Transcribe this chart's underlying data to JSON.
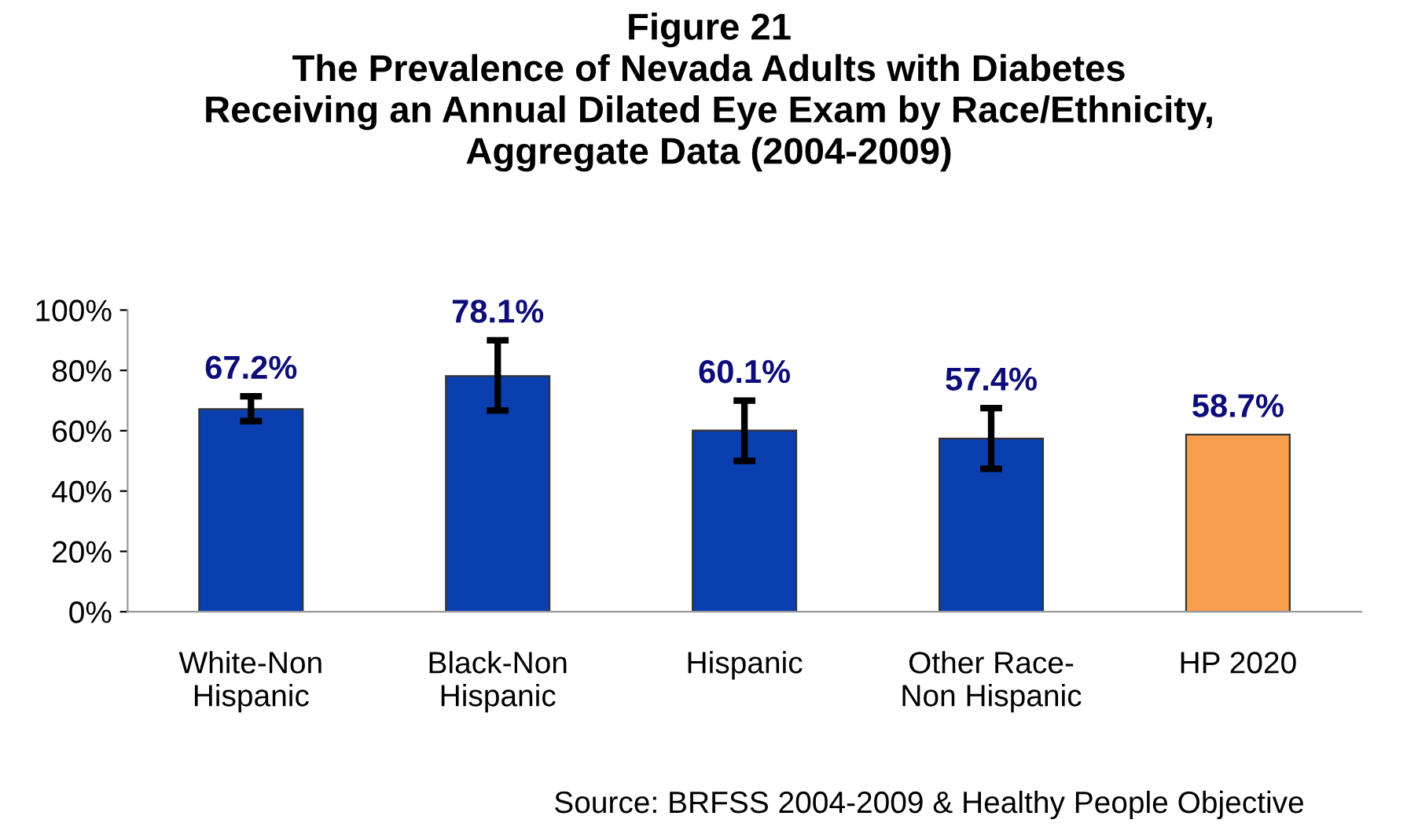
{
  "chart_data": {
    "type": "bar",
    "title": "Figure 21\nThe Prevalence of Nevada Adults with Diabetes\nReceiving an Annual Dilated Eye Exam by Race/Ethnicity,\nAggregate Data (2004-2009)",
    "categories": [
      "White-Non\nHispanic",
      "Black-Non\nHispanic",
      "Hispanic",
      "Other Race-\nNon Hispanic",
      "HP 2020"
    ],
    "values": [
      67.2,
      78.1,
      60.1,
      57.4,
      58.7
    ],
    "colors": [
      "#0a3fb0",
      "#0a3fb0",
      "#0a3fb0",
      "#0a3fb0",
      "#f79e4f"
    ],
    "errors": [
      [
        63.2,
        71.4
      ],
      [
        66.7,
        90.0
      ],
      [
        50.0,
        70.0
      ],
      [
        47.4,
        67.5
      ],
      null
    ],
    "value_labels": [
      "67.2%",
      "78.1%",
      "60.1%",
      "57.4%",
      "58.7%"
    ],
    "ylim": [
      0,
      100
    ],
    "yticks": [
      {
        "value": 0,
        "label": "0%"
      },
      {
        "value": 20,
        "label": "20%"
      },
      {
        "value": 40,
        "label": "40%"
      },
      {
        "value": 60,
        "label": "60%"
      },
      {
        "value": 80,
        "label": "80%"
      },
      {
        "value": 100,
        "label": "100%"
      }
    ],
    "grid": false,
    "legend": false,
    "annotations": [
      "Source: BRFSS 2004-2009 & Healthy People Objective"
    ]
  }
}
